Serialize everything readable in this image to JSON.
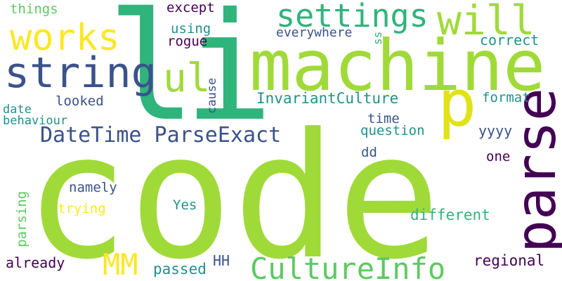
{
  "palette": {
    "background": "#ffffff",
    "dark_purple": "#440154",
    "indigo": "#3b528b",
    "teal": "#21918c",
    "green": "#2fb47c",
    "lime": "#a0da39",
    "yellow": "#fde725"
  },
  "words": {
    "code": "code",
    "li": "li",
    "machine": "machine",
    "parse": "parse",
    "string": "string",
    "works": "works",
    "settings": "settings",
    "will": "will",
    "ul": "ul",
    "p": "p",
    "CultureInfo": "CultureInfo",
    "DateTime_ParseExact": "DateTime ParseExact",
    "MM": "MM",
    "InvariantCulture": "InvariantCulture",
    "things": "things",
    "except": "except",
    "using": "using",
    "rogue": "rogue",
    "everywhere": "everywhere",
    "ss": "ss",
    "correct": "correct",
    "looked": "looked",
    "cause": "cause",
    "date": "date",
    "behaviour": "behaviour",
    "format": "format",
    "time": "time",
    "question": "question",
    "yyyy": "yyyy",
    "dd": "dd",
    "one": "one",
    "namely": "namely",
    "trying": "trying",
    "Yes": "Yes",
    "parsing": "parsing",
    "different": "different",
    "already": "already",
    "passed": "passed",
    "HH": "HH",
    "regional": "regional"
  }
}
